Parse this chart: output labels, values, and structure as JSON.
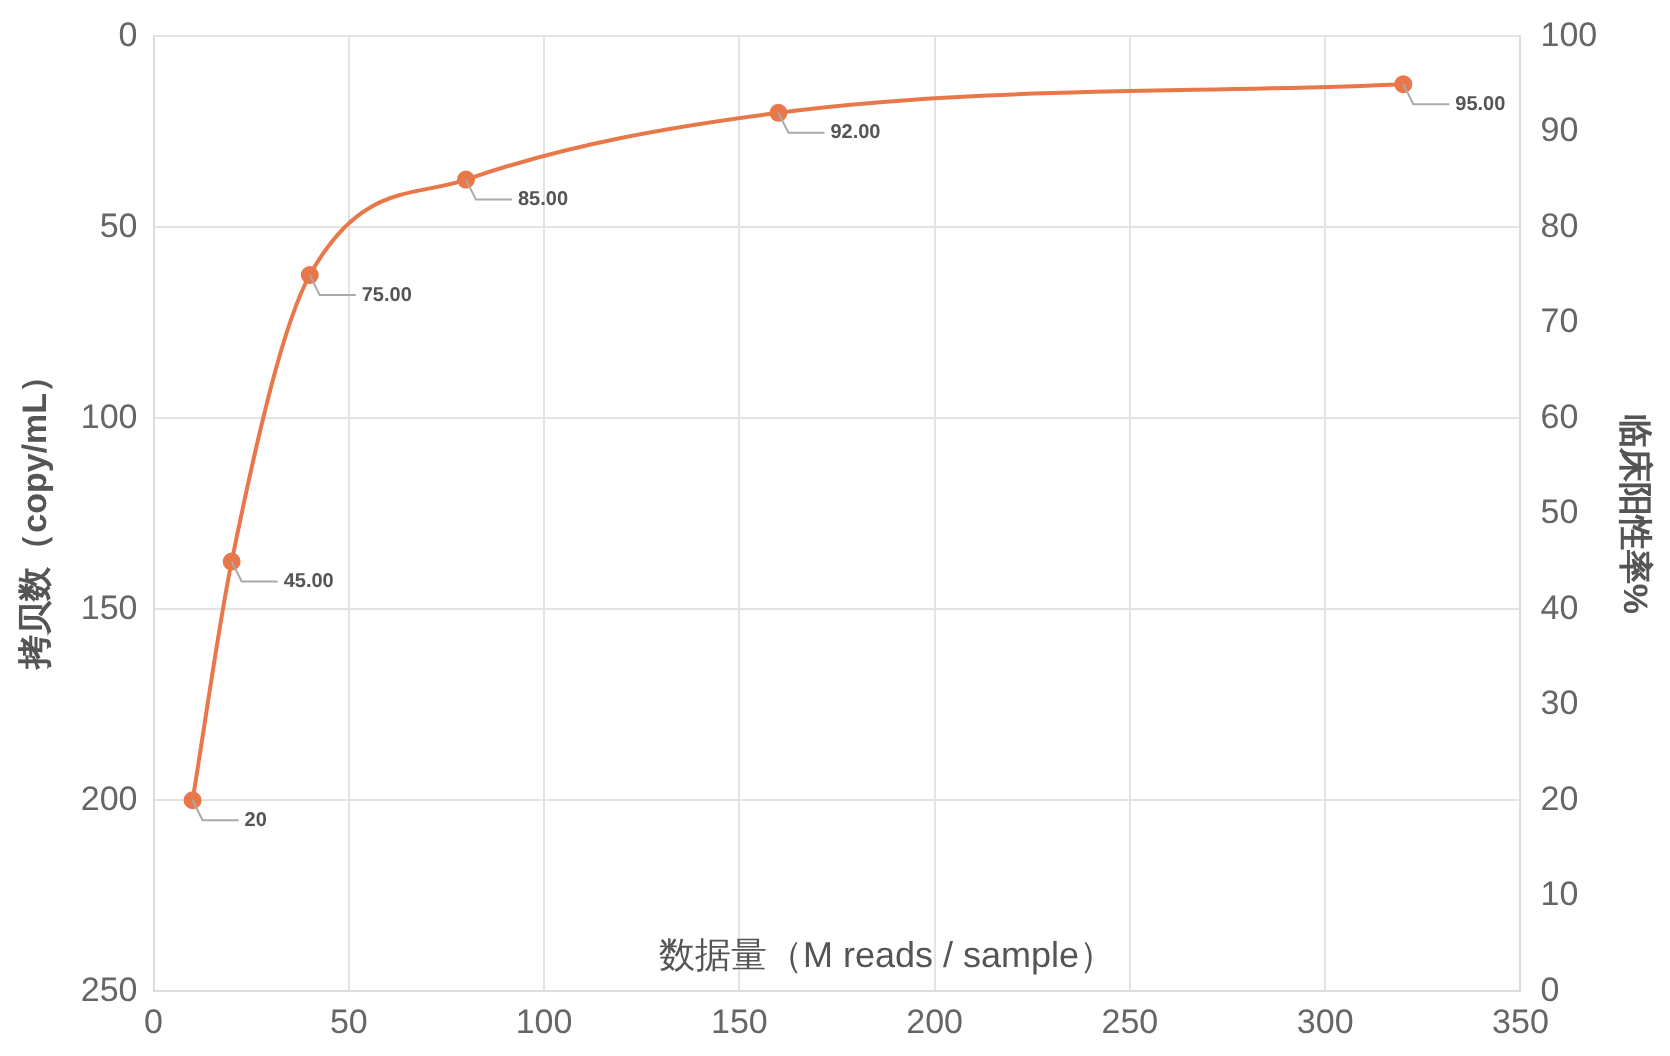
{
  "chart_data": {
    "type": "line",
    "xlabel": "数据量（M reads / sample）",
    "ylabel": "拷贝数（copy/mL）",
    "y2label": "临床阳性率%",
    "xlim": [
      0,
      350
    ],
    "xticks": [
      0,
      50,
      100,
      150,
      200,
      250,
      300,
      350
    ],
    "ylim": [
      250,
      0
    ],
    "yticks": [
      0,
      50,
      100,
      150,
      200,
      250
    ],
    "y2lim": [
      0,
      100
    ],
    "y2ticks": [
      0,
      10,
      20,
      30,
      40,
      50,
      60,
      70,
      80,
      90,
      100
    ],
    "grid": true,
    "legend": false,
    "marker": "circle",
    "line_style": "solid",
    "series": [
      {
        "axis": "y2",
        "color": "#e8784a",
        "x": [
          10,
          20,
          40,
          80,
          160,
          320
        ],
        "values": [
          20,
          45,
          75,
          85,
          92,
          95
        ],
        "value_labels": [
          "20",
          "45.00",
          "75.00",
          "85.00",
          "92.00",
          "95.00"
        ]
      }
    ]
  }
}
